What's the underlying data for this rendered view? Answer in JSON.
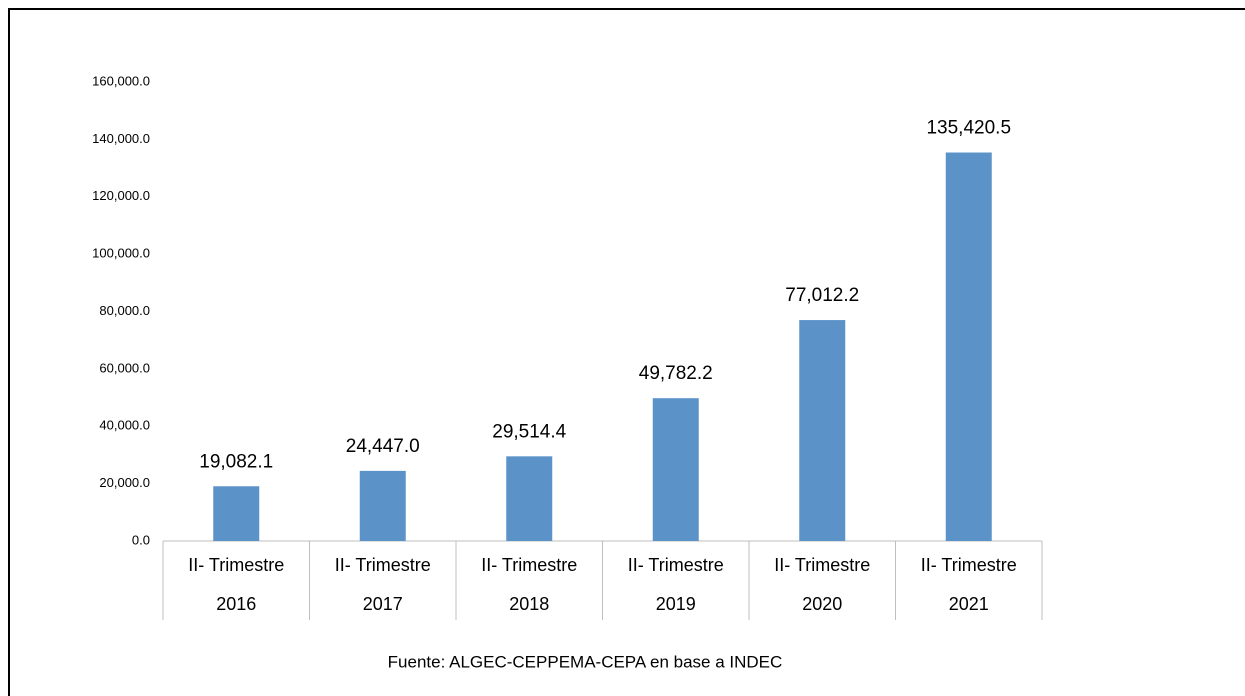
{
  "chart_data": {
    "type": "bar",
    "categories": [
      [
        "II- Trimestre",
        "2016"
      ],
      [
        "II- Trimestre",
        "2017"
      ],
      [
        "II- Trimestre",
        "2018"
      ],
      [
        "II- Trimestre",
        "2019"
      ],
      [
        "II- Trimestre",
        "2020"
      ],
      [
        "II- Trimestre",
        "2021"
      ]
    ],
    "values": [
      19082.1,
      24447.0,
      29514.4,
      49782.2,
      77012.2,
      135420.5
    ],
    "value_labels": [
      "19,082.1",
      "24,447.0",
      "29,514.4",
      "49,782.2",
      "77,012.2",
      "135,420.5"
    ],
    "color": "#5b93c9",
    "ylim": [
      0,
      160000
    ],
    "yticks": [
      {
        "value": 0,
        "label": "0.0"
      },
      {
        "value": 20000,
        "label": "20,000.0"
      },
      {
        "value": 40000,
        "label": "40,000.0"
      },
      {
        "value": 60000,
        "label": "60,000.0"
      },
      {
        "value": 80000,
        "label": "80,000.0"
      },
      {
        "value": 100000,
        "label": "100,000.0"
      },
      {
        "value": 120000,
        "label": "120,000.0"
      },
      {
        "value": 140000,
        "label": "140,000.0"
      },
      {
        "value": 160000,
        "label": "160,000.0"
      }
    ],
    "grid": false,
    "source": "Fuente: ALGEC-CEPPEMA-CEPA en base a INDEC"
  }
}
